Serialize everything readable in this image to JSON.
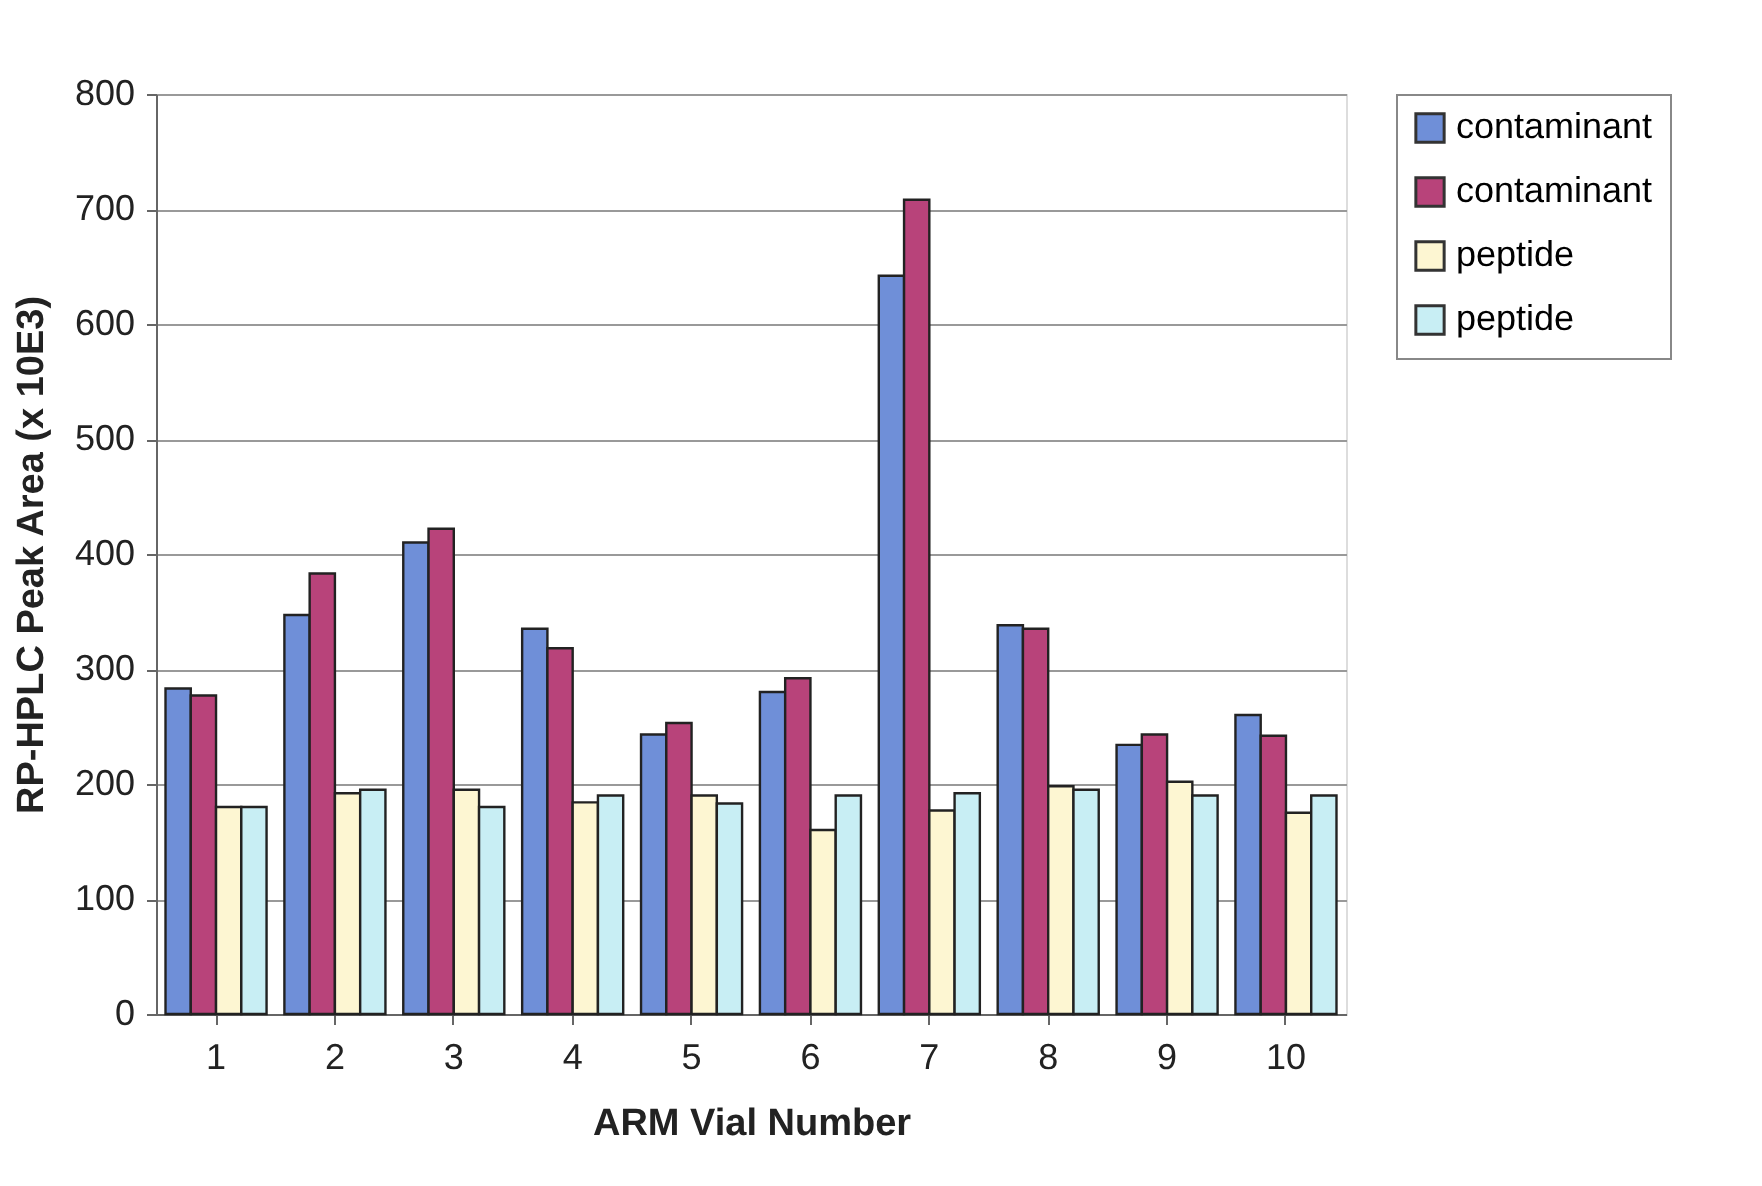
{
  "chart_data": {
    "type": "bar",
    "xlabel": "ARM Vial Number",
    "ylabel": "RP-HPLC Peak Area (x 10E3)",
    "categories": [
      "1",
      "2",
      "3",
      "4",
      "5",
      "6",
      "7",
      "8",
      "9",
      "10"
    ],
    "series": [
      {
        "name": "contaminant",
        "color": "#6f8fd8",
        "values": [
          283,
          347,
          410,
          335,
          243,
          280,
          642,
          338,
          234,
          260
        ]
      },
      {
        "name": "contaminant",
        "color": "#b8437a",
        "values": [
          277,
          383,
          422,
          318,
          253,
          292,
          708,
          335,
          243,
          242
        ]
      },
      {
        "name": "peptide",
        "color": "#fdf6d2",
        "values": [
          180,
          192,
          195,
          184,
          190,
          160,
          177,
          198,
          202,
          175
        ]
      },
      {
        "name": "peptide",
        "color": "#c8eef4",
        "values": [
          180,
          195,
          180,
          190,
          183,
          190,
          192,
          195,
          190,
          190
        ]
      }
    ],
    "ylim": [
      0,
      800
    ],
    "yticks": [
      0,
      100,
      200,
      300,
      400,
      500,
      600,
      700,
      800
    ],
    "grid": "y",
    "legend": "top right"
  }
}
